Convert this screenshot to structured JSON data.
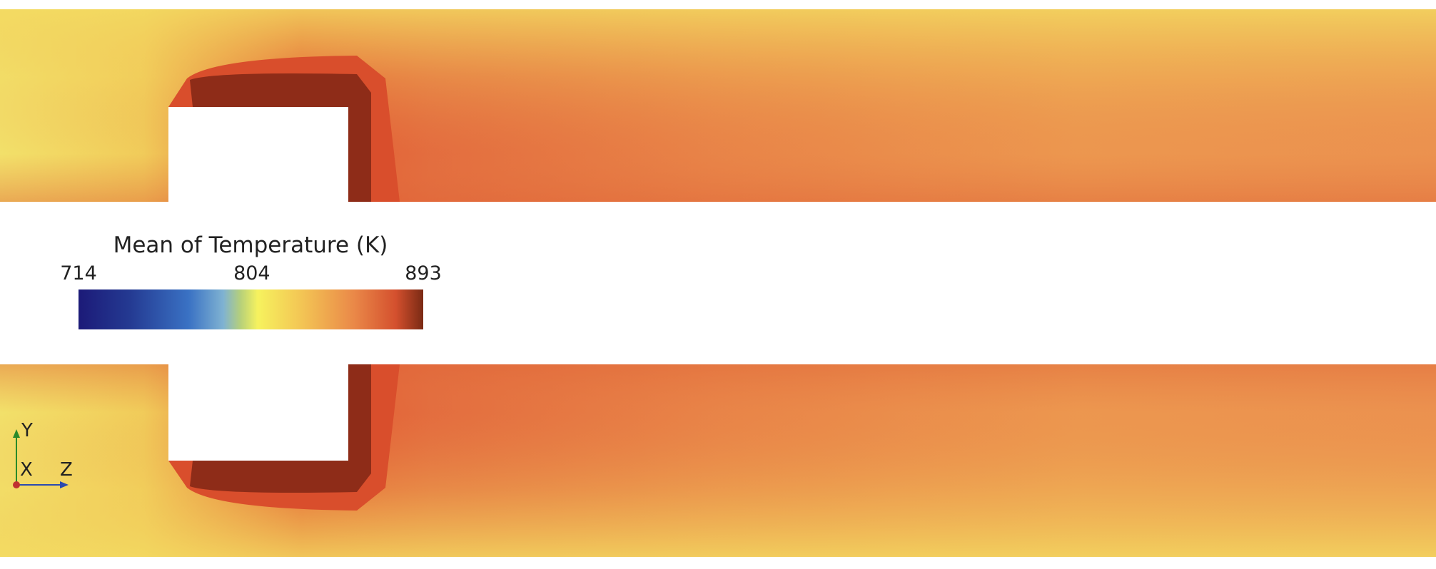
{
  "legend": {
    "title": "Mean of Temperature (K)",
    "ticks": [
      714,
      804,
      893
    ]
  },
  "triad": {
    "y": "Y",
    "x": "X",
    "z": "Z"
  }
}
